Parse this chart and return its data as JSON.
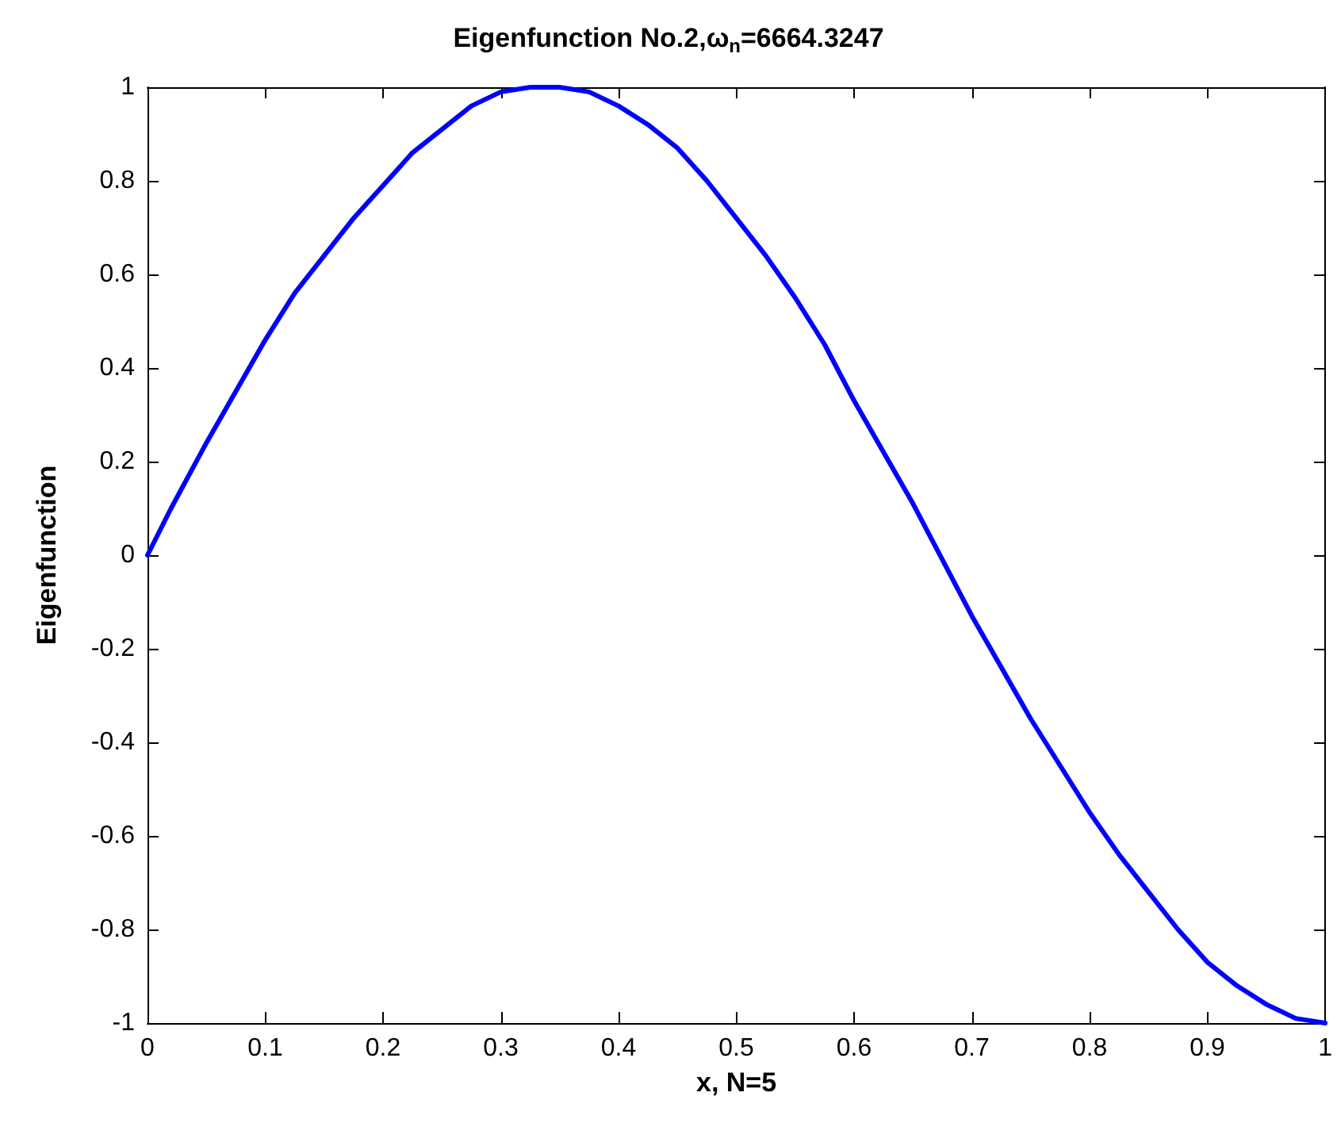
{
  "chart_data": {
    "type": "line",
    "title": "Eigenfunction No.2,ω$_{n}$=6664.3247",
    "xlabel": "x, N=5",
    "ylabel": "Eigenfunction",
    "x": [
      0,
      0.02,
      0.05,
      0.075,
      0.1,
      0.125,
      0.15,
      0.175,
      0.2,
      0.225,
      0.25,
      0.275,
      0.3,
      0.325,
      0.35,
      0.375,
      0.4,
      0.425,
      0.45,
      0.475,
      0.5,
      0.525,
      0.55,
      0.575,
      0.6,
      0.625,
      0.65,
      0.675,
      0.7,
      0.725,
      0.75,
      0.775,
      0.8,
      0.825,
      0.85,
      0.875,
      0.9,
      0.925,
      0.95,
      0.975,
      1
    ],
    "series": [
      {
        "color": "#0000ff",
        "values": [
          0,
          0.1,
          0.24,
          0.35,
          0.46,
          0.56,
          0.64,
          0.72,
          0.79,
          0.86,
          0.91,
          0.96,
          0.99,
          1,
          1,
          0.99,
          0.96,
          0.92,
          0.87,
          0.8,
          0.72,
          0.64,
          0.55,
          0.45,
          0.33,
          0.22,
          0.11,
          -0.01,
          -0.13,
          -0.24,
          -0.35,
          -0.45,
          -0.55,
          -0.64,
          -0.72,
          -0.8,
          -0.87,
          -0.92,
          -0.96,
          -0.99,
          -1
        ]
      }
    ],
    "xlim": [
      0,
      1
    ],
    "xticks": [
      0,
      0.1,
      0.2,
      0.3,
      0.4,
      0.5,
      0.6,
      0.7,
      0.8,
      0.9,
      1
    ],
    "ylim": [
      -1,
      1
    ],
    "yticks": [
      -1,
      -0.8,
      -0.6,
      -0.4,
      -0.2,
      0,
      0.2,
      0.4,
      0.6,
      0.8,
      1
    ],
    "grid": false,
    "marker": "none",
    "line_style": "solid"
  }
}
